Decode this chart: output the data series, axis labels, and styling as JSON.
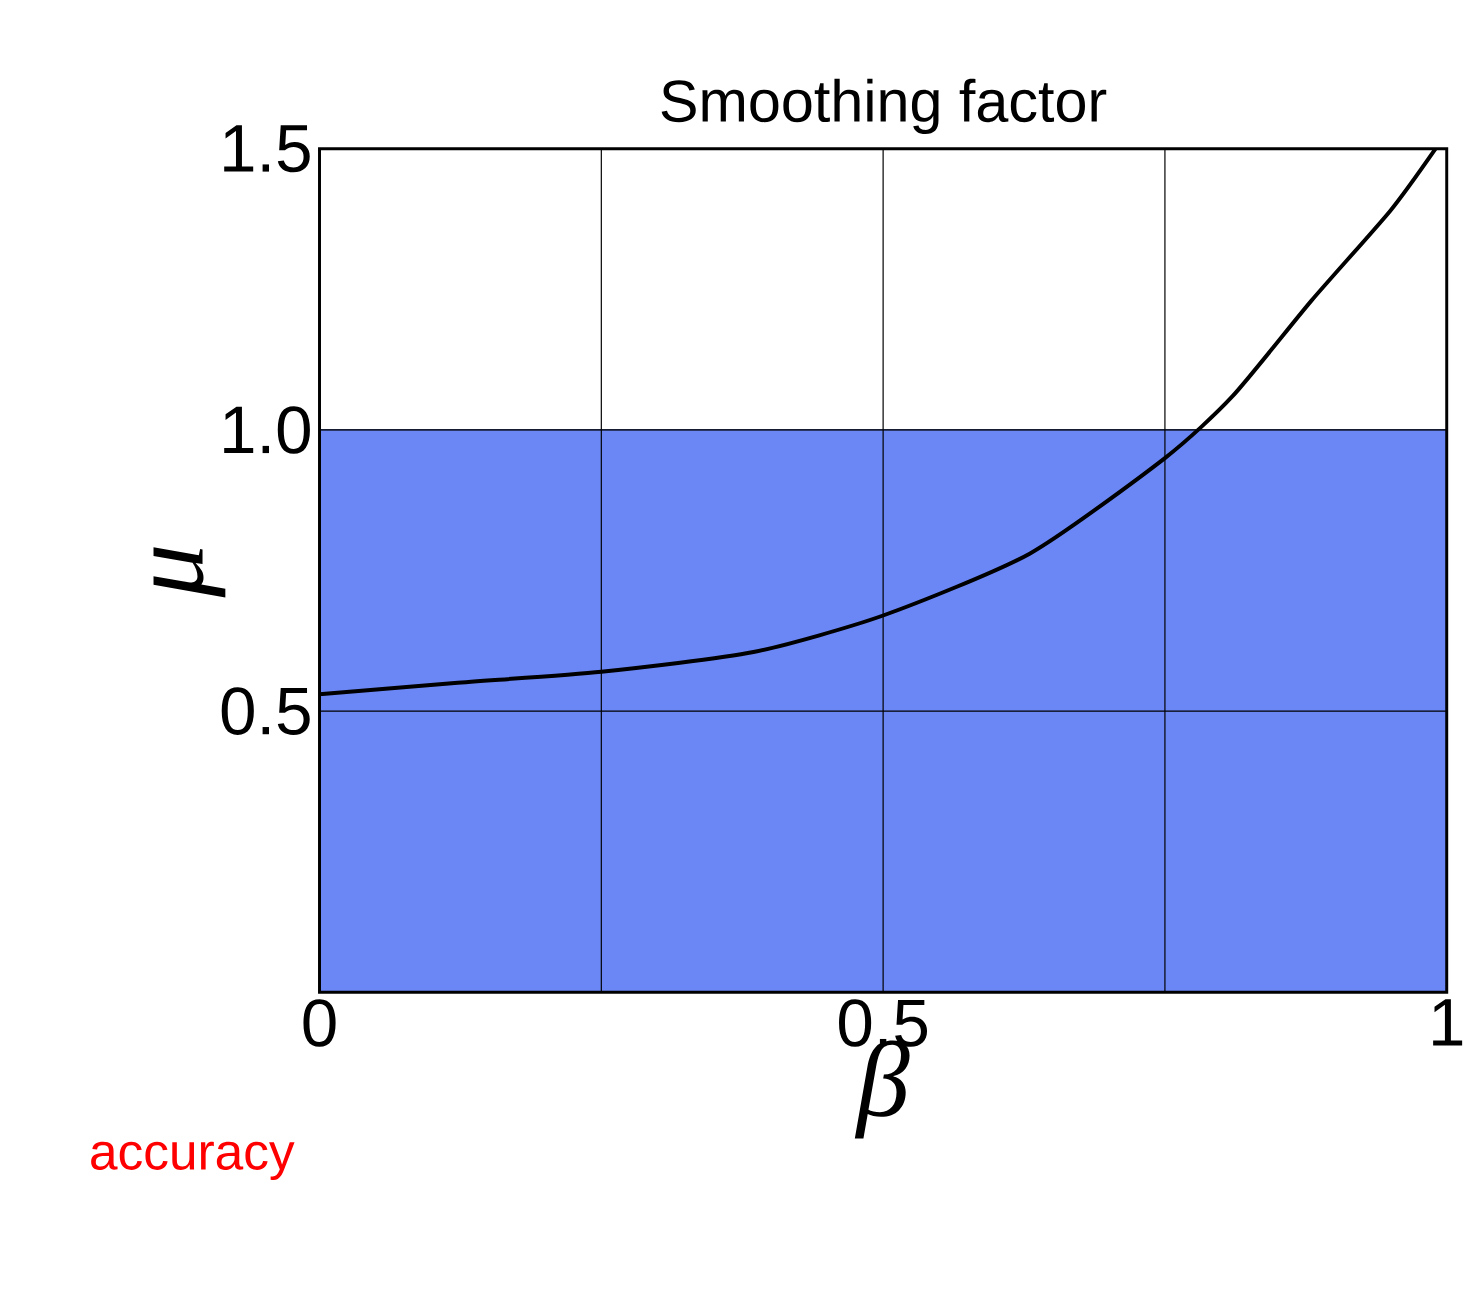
{
  "chart_data": {
    "type": "line",
    "title": "Smoothing factor",
    "xlabel": "β",
    "ylabel": "μ",
    "x": [
      0,
      0.12,
      0.25,
      0.385,
      0.5,
      0.63,
      0.75,
      0.81,
      0.88,
      0.95,
      0.99
    ],
    "series": [
      {
        "color": "#000000",
        "values": [
          0.53,
          0.55,
          0.57,
          0.605,
          0.67,
          0.78,
          0.95,
          1.06,
          1.23,
          1.39,
          1.5
        ]
      }
    ],
    "xlim": [
      0,
      1
    ],
    "ylim": [
      0,
      1.5
    ],
    "xticks": [
      0,
      {
        "value": 0.25,
        "label": null
      },
      0.5,
      {
        "value": 0.75,
        "label": null
      },
      1
    ],
    "yticks": [
      0.5,
      {
        "value": 1.0,
        "label": "1.0"
      },
      1.5
    ],
    "bands": [
      {
        "axis": "y",
        "from": 0,
        "to": 1.0,
        "color": "#6b87f5"
      }
    ],
    "grid": true,
    "marker": "none",
    "line_style": "solid",
    "annotations": [
      "accuracy"
    ]
  }
}
